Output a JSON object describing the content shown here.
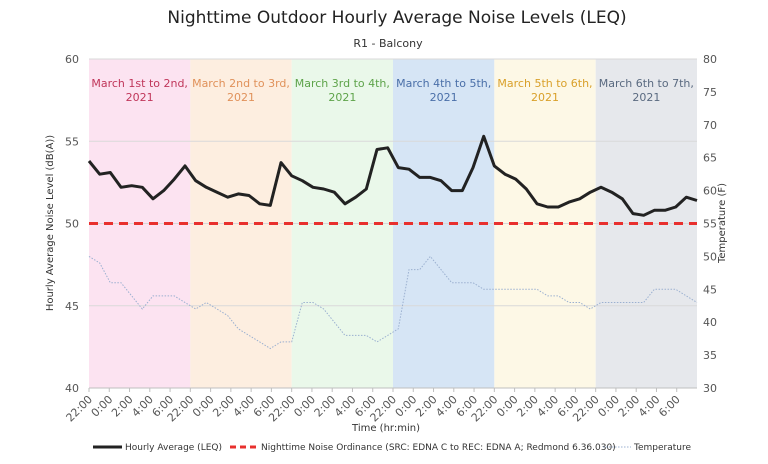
{
  "chart_data": {
    "type": "line",
    "title": "Nighttime Outdoor Hourly Average Noise Levels (LEQ)",
    "subtitle": "R1 - Balcony",
    "xlabel": "Time (hr:min)",
    "ylabel": "Hourly Average Noise Level (dB(A))",
    "y2label": "Temperature (F)",
    "ylim": [
      40,
      60
    ],
    "y2lim": [
      30,
      80
    ],
    "yticks": [
      40,
      45,
      50,
      55,
      60
    ],
    "y2ticks": [
      30,
      35,
      40,
      45,
      50,
      55,
      60,
      65,
      70,
      75,
      80
    ],
    "x_tick_labels": [
      "22:00",
      "0:00",
      "2:00",
      "4:00",
      "6:00",
      "22:00",
      "0:00",
      "2:00",
      "4:00",
      "6:00",
      "22:00",
      "0:00",
      "2:00",
      "4:00",
      "6:00",
      "22:00",
      "0:00",
      "2:00",
      "4:00",
      "6:00",
      "22:00",
      "0:00",
      "2:00",
      "4:00",
      "6:00",
      "22:00",
      "0:00",
      "2:00",
      "4:00",
      "6:00"
    ],
    "bands": [
      {
        "label_line1": "March 1st to 2nd,",
        "label_line2": "2021",
        "fill": "#fce3f1",
        "text_color": "#c0365a"
      },
      {
        "label_line1": "March 2nd to 3rd,",
        "label_line2": "2021",
        "fill": "#fdeee0",
        "text_color": "#e0915a"
      },
      {
        "label_line1": "March 3rd to 4th,",
        "label_line2": "2021",
        "fill": "#eaf8ea",
        "text_color": "#5ea34a"
      },
      {
        "label_line1": "March 4th to 5th,",
        "label_line2": "2021",
        "fill": "#d6e5f5",
        "text_color": "#4a6fa8"
      },
      {
        "label_line1": "March 5th to 6th,",
        "label_line2": "2021",
        "fill": "#fdf8e6",
        "text_color": "#d9a02a"
      },
      {
        "label_line1": "March 6th to 7th,",
        "label_line2": "2021",
        "fill": "#e6e8ec",
        "text_color": "#5a6a80"
      }
    ],
    "ordinance_level": 50,
    "series": [
      {
        "name": "Hourly Average (LEQ)",
        "color": "#222222",
        "axis": "left",
        "values": [
          53.8,
          53.0,
          53.1,
          52.2,
          52.3,
          52.2,
          51.5,
          52.0,
          52.7,
          53.5,
          52.6,
          52.2,
          51.9,
          51.6,
          51.8,
          51.7,
          51.2,
          51.1,
          53.7,
          52.9,
          52.6,
          52.2,
          52.1,
          51.9,
          51.2,
          51.6,
          52.1,
          54.5,
          54.6,
          53.4,
          53.3,
          52.8,
          52.8,
          52.6,
          52.0,
          52.0,
          53.4,
          55.3,
          53.5,
          53.0,
          52.7,
          52.1,
          51.2,
          51.0,
          51.0,
          51.3,
          51.5,
          51.9,
          52.2,
          51.9,
          51.5,
          50.6,
          50.5,
          50.8,
          50.8,
          51.0,
          51.6,
          51.4
        ]
      },
      {
        "name": "Nighttime Noise Ordinance (SRC: EDNA C to REC: EDNA A; Redmond 6.36.030)",
        "color": "#e8302e",
        "axis": "left"
      },
      {
        "name": "Temperature",
        "color": "#9bb0d0",
        "axis": "right",
        "values": [
          50,
          49,
          46,
          46,
          44,
          42,
          44,
          44,
          44,
          43,
          42,
          43,
          42,
          41,
          39,
          38,
          37,
          36,
          37,
          37,
          43,
          43,
          42,
          40,
          38,
          38,
          38,
          37,
          38,
          39,
          48,
          48,
          50,
          48,
          46,
          46,
          46,
          45,
          45,
          45,
          45,
          45,
          45,
          44,
          44,
          43,
          43,
          42,
          43,
          43,
          43,
          43,
          43,
          45,
          45,
          45,
          44,
          43
        ]
      }
    ]
  }
}
